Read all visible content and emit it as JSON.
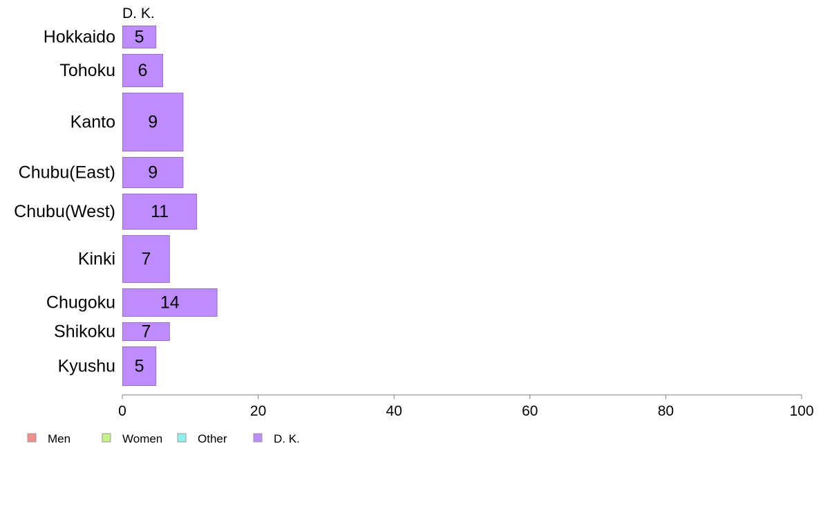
{
  "chart_data": {
    "type": "bar",
    "orientation": "horizontal",
    "title": "",
    "xlabel": "",
    "ylabel": "",
    "xlim": [
      0,
      100
    ],
    "x_ticks": [
      0,
      20,
      40,
      60,
      80,
      100
    ],
    "grid": false,
    "series_label": "D. K.",
    "categories": [
      "Hokkaido",
      "Tohoku",
      "Kanto",
      "Chubu(East)",
      "Chubu(West)",
      "Kinki",
      "Chugoku",
      "Shikoku",
      "Kyushu"
    ],
    "values": [
      5,
      6,
      9,
      9,
      11,
      7,
      14,
      7,
      5
    ],
    "value_labels": [
      "5",
      "6",
      "9",
      "9",
      "11",
      "7",
      "14",
      "7",
      "5"
    ],
    "legend_position": "bottom-left",
    "legend": [
      {
        "name": "Men",
        "color": "#F28E8C"
      },
      {
        "name": "Women",
        "color": "#C6F28C"
      },
      {
        "name": "Other",
        "color": "#8CF2EE"
      },
      {
        "name": "D. K.",
        "color": "#BF8CFF"
      }
    ],
    "bar_color": "#BF8CFF",
    "bar_stroke": "#9A6FD0",
    "axis_color": "#808080"
  }
}
